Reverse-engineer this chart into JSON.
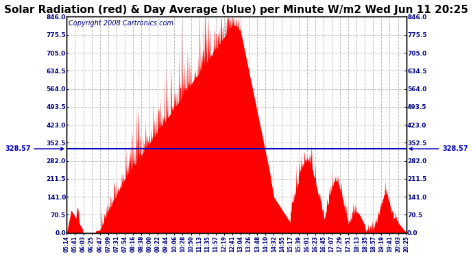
{
  "title": "Solar Radiation (red) & Day Average (blue) per Minute W/m2 Wed Jun 11 20:25",
  "copyright": "Copyright 2008 Cartronics.com",
  "avg_value": 328.57,
  "y_min": 0.0,
  "y_max": 846.0,
  "y_ticks": [
    0.0,
    70.5,
    141.0,
    211.5,
    282.0,
    352.5,
    423.0,
    493.5,
    564.0,
    634.5,
    705.0,
    775.5,
    846.0
  ],
  "x_tick_labels": [
    "05:14",
    "05:41",
    "06:03",
    "06:25",
    "06:47",
    "07:09",
    "07:31",
    "07:54",
    "08:16",
    "08:38",
    "09:00",
    "09:22",
    "09:44",
    "10:06",
    "10:28",
    "10:50",
    "11:13",
    "11:35",
    "11:57",
    "12:19",
    "12:41",
    "13:04",
    "13:26",
    "13:48",
    "14:10",
    "14:32",
    "14:55",
    "15:17",
    "15:39",
    "16:01",
    "16:23",
    "16:45",
    "17:07",
    "17:29",
    "17:51",
    "18:13",
    "18:35",
    "18:57",
    "19:19",
    "19:41",
    "20:03",
    "20:25"
  ],
  "area_color": "#FF0000",
  "line_color": "#0000BB",
  "bg_color": "#FFFFFF",
  "plot_bg_color": "#FFFFFF",
  "grid_color": "#BBBBBB",
  "title_fontsize": 11,
  "copyright_fontsize": 7,
  "avg_label_fontsize": 7
}
